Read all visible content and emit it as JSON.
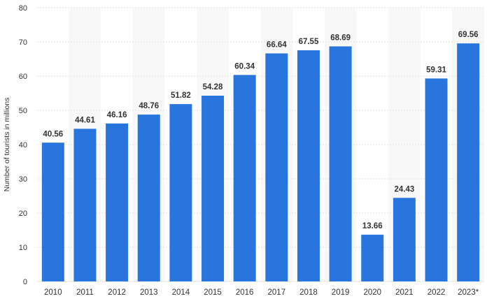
{
  "chart_data": {
    "type": "bar",
    "ylabel": "Number of tourists in millions",
    "xlabel": "",
    "ylim": [
      0,
      80
    ],
    "yticks": [
      0,
      10,
      20,
      30,
      40,
      50,
      60,
      70,
      80
    ],
    "categories": [
      "2010",
      "2011",
      "2012",
      "2013",
      "2014",
      "2015",
      "2016",
      "2017",
      "2018",
      "2019",
      "2020",
      "2021",
      "2022",
      "2023*"
    ],
    "values": [
      40.56,
      44.61,
      46.16,
      48.76,
      51.82,
      54.28,
      60.34,
      66.64,
      67.55,
      68.69,
      13.66,
      24.43,
      59.31,
      69.56
    ],
    "data_labels": [
      "40.56",
      "44.61",
      "46.16",
      "48.76",
      "51.82",
      "54.28",
      "60.34",
      "66.64",
      "67.55",
      "68.69",
      "13.66",
      "24.43",
      "59.31",
      "69.56"
    ],
    "bar_color": "#2876dd",
    "alt_band_color": "#f8f8f8",
    "gridline_color": "#e3e3e3",
    "grid": true,
    "legend": "none"
  }
}
